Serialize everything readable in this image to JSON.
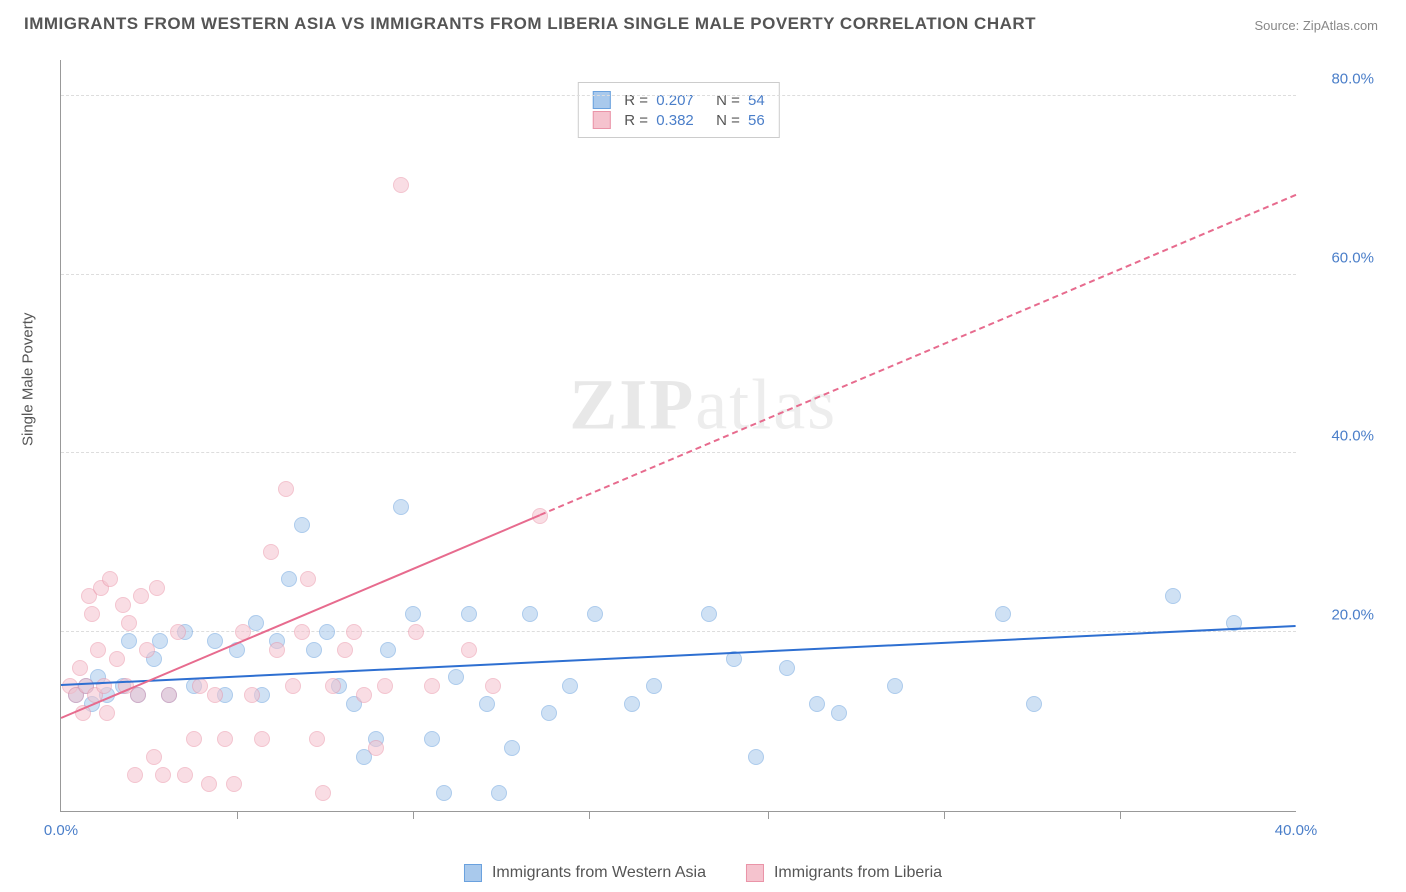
{
  "title": "IMMIGRANTS FROM WESTERN ASIA VS IMMIGRANTS FROM LIBERIA SINGLE MALE POVERTY CORRELATION CHART",
  "source": "Source: ZipAtlas.com",
  "watermark": {
    "bold": "ZIP",
    "light": "atlas"
  },
  "y_axis_label": "Single Male Poverty",
  "chart": {
    "type": "scatter",
    "xlim": [
      0,
      40
    ],
    "ylim": [
      0,
      84
    ],
    "x_ticks_major": [
      0,
      40
    ],
    "x_ticks_minor": [
      5.7,
      11.4,
      17.1,
      22.9,
      28.6,
      34.3
    ],
    "y_ticks": [
      20,
      40,
      60,
      80
    ],
    "y_tick_labels": [
      "20.0%",
      "40.0%",
      "60.0%",
      "80.0%"
    ],
    "x_tick_labels": [
      "0.0%",
      "40.0%"
    ],
    "grid_color": "#dddddd",
    "background_color": "#ffffff",
    "point_radius": 8,
    "point_opacity": 0.55,
    "series": [
      {
        "name": "Immigrants from Western Asia",
        "fill": "#a9c9ec",
        "stroke": "#6aa1de",
        "line_color": "#2e6fd1",
        "trend": {
          "x1": 0,
          "y1": 14.2,
          "x2": 40,
          "y2": 20.8,
          "solid_until_x": 40
        },
        "points": [
          [
            0.5,
            13
          ],
          [
            0.8,
            14
          ],
          [
            1.0,
            12
          ],
          [
            1.2,
            15
          ],
          [
            1.5,
            13
          ],
          [
            2.0,
            14
          ],
          [
            2.2,
            19
          ],
          [
            2.5,
            13
          ],
          [
            3.0,
            17
          ],
          [
            3.2,
            19
          ],
          [
            3.5,
            13
          ],
          [
            4.0,
            20
          ],
          [
            4.3,
            14
          ],
          [
            5.0,
            19
          ],
          [
            5.3,
            13
          ],
          [
            5.7,
            18
          ],
          [
            6.3,
            21
          ],
          [
            6.5,
            13
          ],
          [
            7.0,
            19
          ],
          [
            7.4,
            26
          ],
          [
            7.8,
            32
          ],
          [
            8.2,
            18
          ],
          [
            8.6,
            20
          ],
          [
            9.0,
            14
          ],
          [
            9.5,
            12
          ],
          [
            9.8,
            6
          ],
          [
            10.2,
            8
          ],
          [
            10.6,
            18
          ],
          [
            11.0,
            34
          ],
          [
            11.4,
            22
          ],
          [
            12.0,
            8
          ],
          [
            12.4,
            2
          ],
          [
            12.8,
            15
          ],
          [
            13.2,
            22
          ],
          [
            13.8,
            12
          ],
          [
            14.2,
            2
          ],
          [
            14.6,
            7
          ],
          [
            15.2,
            22
          ],
          [
            15.8,
            11
          ],
          [
            16.5,
            14
          ],
          [
            17.3,
            22
          ],
          [
            18.5,
            12
          ],
          [
            19.2,
            14
          ],
          [
            21.0,
            22
          ],
          [
            21.8,
            17
          ],
          [
            22.5,
            6
          ],
          [
            23.5,
            16
          ],
          [
            24.5,
            12
          ],
          [
            25.2,
            11
          ],
          [
            27.0,
            14
          ],
          [
            30.5,
            22
          ],
          [
            31.5,
            12
          ],
          [
            36.0,
            24
          ],
          [
            38.0,
            21
          ]
        ]
      },
      {
        "name": "Immigrants from Liberia",
        "fill": "#f5c3ce",
        "stroke": "#ea94a8",
        "line_color": "#e76b8e",
        "trend": {
          "x1": 0,
          "y1": 10.5,
          "x2": 40,
          "y2": 69,
          "solid_until_x": 15.5
        },
        "points": [
          [
            0.3,
            14
          ],
          [
            0.5,
            13
          ],
          [
            0.6,
            16
          ],
          [
            0.7,
            11
          ],
          [
            0.8,
            14
          ],
          [
            0.9,
            24
          ],
          [
            1.0,
            22
          ],
          [
            1.1,
            13
          ],
          [
            1.2,
            18
          ],
          [
            1.3,
            25
          ],
          [
            1.4,
            14
          ],
          [
            1.5,
            11
          ],
          [
            1.6,
            26
          ],
          [
            1.8,
            17
          ],
          [
            2.0,
            23
          ],
          [
            2.1,
            14
          ],
          [
            2.2,
            21
          ],
          [
            2.4,
            4
          ],
          [
            2.5,
            13
          ],
          [
            2.6,
            24
          ],
          [
            2.8,
            18
          ],
          [
            3.0,
            6
          ],
          [
            3.1,
            25
          ],
          [
            3.3,
            4
          ],
          [
            3.5,
            13
          ],
          [
            3.8,
            20
          ],
          [
            4.0,
            4
          ],
          [
            4.3,
            8
          ],
          [
            4.5,
            14
          ],
          [
            4.8,
            3
          ],
          [
            5.0,
            13
          ],
          [
            5.3,
            8
          ],
          [
            5.6,
            3
          ],
          [
            5.9,
            20
          ],
          [
            6.2,
            13
          ],
          [
            6.5,
            8
          ],
          [
            6.8,
            29
          ],
          [
            7.0,
            18
          ],
          [
            7.3,
            36
          ],
          [
            7.5,
            14
          ],
          [
            7.8,
            20
          ],
          [
            8.0,
            26
          ],
          [
            8.3,
            8
          ],
          [
            8.5,
            2
          ],
          [
            8.8,
            14
          ],
          [
            9.2,
            18
          ],
          [
            9.5,
            20
          ],
          [
            9.8,
            13
          ],
          [
            10.2,
            7
          ],
          [
            10.5,
            14
          ],
          [
            11.0,
            70
          ],
          [
            11.5,
            20
          ],
          [
            12.0,
            14
          ],
          [
            13.2,
            18
          ],
          [
            14.0,
            14
          ],
          [
            15.5,
            33
          ]
        ]
      }
    ]
  },
  "stats": {
    "rows": [
      {
        "swatch_fill": "#a9c9ec",
        "swatch_stroke": "#6aa1de",
        "r": "0.207",
        "n": "54"
      },
      {
        "swatch_fill": "#f5c3ce",
        "swatch_stroke": "#ea94a8",
        "r": "0.382",
        "n": "56"
      }
    ],
    "r_label": "R =",
    "n_label": "N ="
  },
  "legend": {
    "items": [
      {
        "label": "Immigrants from Western Asia",
        "fill": "#a9c9ec",
        "stroke": "#6aa1de"
      },
      {
        "label": "Immigrants from Liberia",
        "fill": "#f5c3ce",
        "stroke": "#ea94a8"
      }
    ]
  }
}
